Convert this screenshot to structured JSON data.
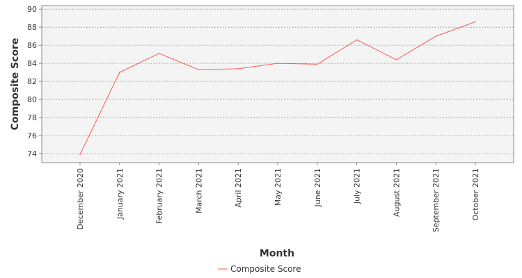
{
  "chart_data": {
    "type": "line",
    "title": "",
    "xlabel": "Month",
    "ylabel": "Composite Score",
    "categories": [
      "December 2020",
      "January 2021",
      "February 2021",
      "March 2021",
      "April 2021",
      "May 2021",
      "June 2021",
      "July 2021",
      "August 2021",
      "September 2021",
      "October 2021"
    ],
    "series": [
      {
        "name": "Composite Score",
        "values": [
          73.9,
          83.0,
          85.1,
          83.3,
          83.4,
          84.0,
          83.9,
          86.6,
          84.4,
          87.0,
          88.6
        ],
        "color": "#ff5555"
      }
    ],
    "ylim": [
      73,
      90.4
    ],
    "yticks": [
      74,
      76,
      78,
      80,
      82,
      84,
      86,
      88,
      90
    ],
    "grid": true,
    "legend": "bottom-center",
    "plot_background": "#f4f4f4"
  }
}
